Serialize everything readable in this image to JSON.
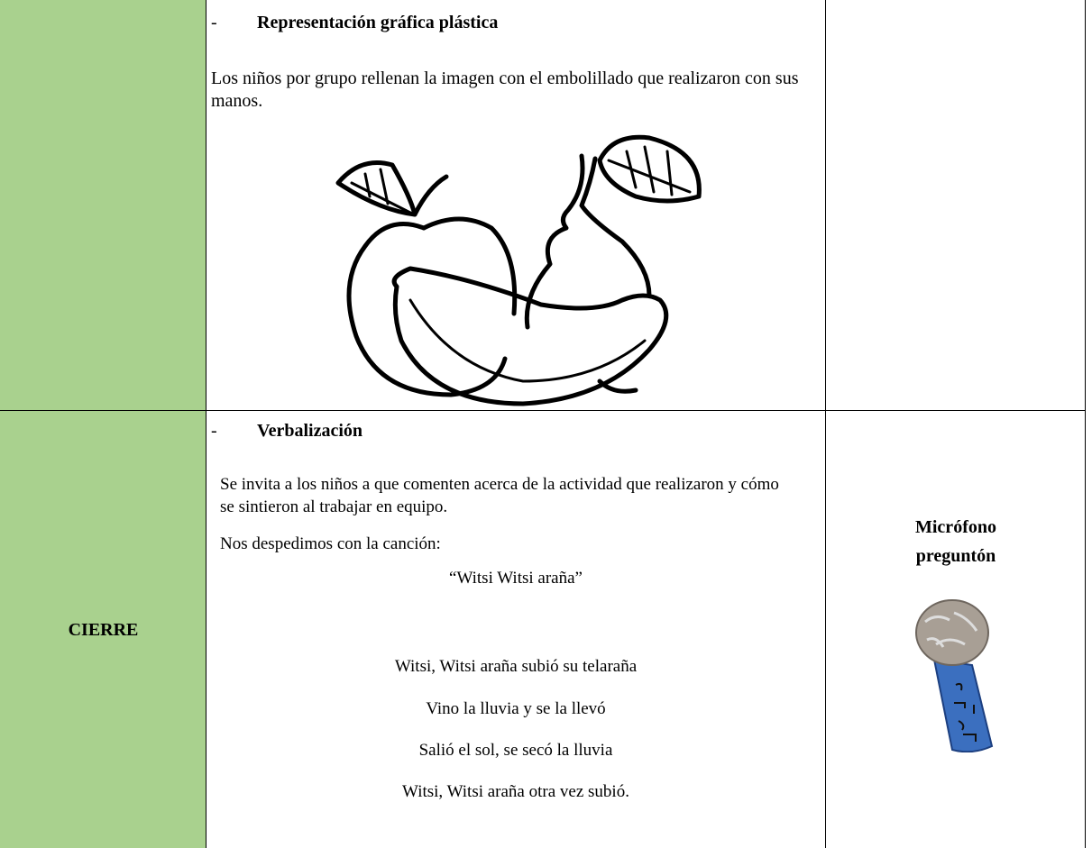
{
  "table": {
    "rows": [
      {
        "activity": {
          "bullet": "-",
          "heading": "Representación gráfica plástica",
          "paragraphs": [
            "Los niños por grupo rellenan la imagen con el embolillado que realizaron con sus manos."
          ]
        }
      },
      {
        "stage": "CIERRE",
        "activity": {
          "bullet": "-",
          "heading": "Verbalización",
          "paragraphs": [
            "Se invita a los niños a que comenten acerca de la actividad que realizaron y cómo se sintieron al trabajar en equipo.",
            "Nos despedimos con la canción:"
          ],
          "song_title": "“Witsi Witsi araña”",
          "lyrics": [
            "Witsi, Witsi araña subió su telaraña",
            "Vino la lluvia y se la llevó",
            "Salió el sol, se secó la lluvia",
            "Witsi, Witsi araña otra vez subió."
          ]
        },
        "resource": "Micrófono preguntón"
      }
    ]
  }
}
